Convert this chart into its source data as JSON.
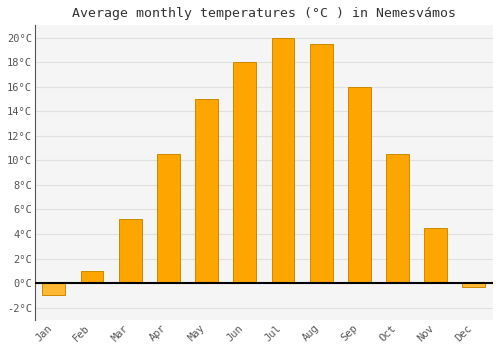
{
  "title": "Average monthly temperatures (°C ) in Nemesvámos",
  "months": [
    "Jan",
    "Feb",
    "Mar",
    "Apr",
    "May",
    "Jun",
    "Jul",
    "Aug",
    "Sep",
    "Oct",
    "Nov",
    "Dec"
  ],
  "values": [
    -1.0,
    1.0,
    5.2,
    10.5,
    15.0,
    18.0,
    20.0,
    19.5,
    16.0,
    10.5,
    4.5,
    -0.3
  ],
  "bar_color_positive": "#FFA500",
  "bar_color_negative": "#FFB833",
  "bar_edge_color": "#CC8800",
  "ylim": [
    -3,
    21
  ],
  "yticks": [
    -2,
    0,
    2,
    4,
    6,
    8,
    10,
    12,
    14,
    16,
    18,
    20
  ],
  "ytick_labels": [
    "-2°C",
    "0°C",
    "2°C",
    "4°C",
    "6°C",
    "8°C",
    "10°C",
    "12°C",
    "14°C",
    "16°C",
    "18°C",
    "20°C"
  ],
  "plot_bg_color": "#f5f5f5",
  "fig_bg_color": "#ffffff",
  "grid_color": "#e0e0e0",
  "zero_line_color": "#000000",
  "title_fontsize": 9.5,
  "tick_fontsize": 7.5,
  "bar_width": 0.6
}
